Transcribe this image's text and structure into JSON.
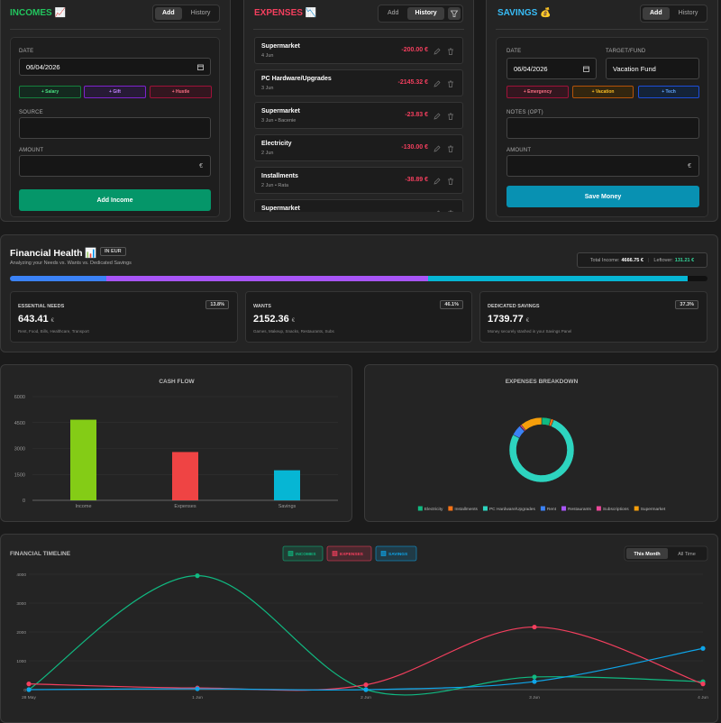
{
  "incomes": {
    "title": "INCOMES 📈",
    "tabs": [
      "Add",
      "History"
    ],
    "date_label": "DATE",
    "date": "06/04/2026",
    "quick": [
      "+ Salary",
      "+ Gift",
      "+ Hustle"
    ],
    "source_label": "SOURCE",
    "amount_label": "AMOUNT",
    "currency": "€",
    "submit": "Add Income"
  },
  "expenses": {
    "title": "EXPENSES 📉",
    "tabs": [
      "Add",
      "History"
    ],
    "items": [
      {
        "name": "Supermarket",
        "meta": "4 Jun",
        "amount": "-200.00 €"
      },
      {
        "name": "PC Hardware/Upgrades",
        "meta": "3 Jun",
        "amount": "-2145.32 €"
      },
      {
        "name": "Supermarket",
        "meta": "3 Jun • Bacenie",
        "amount": "-23.83 €"
      },
      {
        "name": "Electricity",
        "meta": "2 Jun",
        "amount": "-130.00 €"
      },
      {
        "name": "Installments",
        "meta": "2 Jun • Rata",
        "amount": "-38.89 €"
      },
      {
        "name": "Supermarket"
      }
    ]
  },
  "savings": {
    "title": "SAVINGS 💰",
    "tabs": [
      "Add",
      "History"
    ],
    "date_label": "DATE",
    "date": "06/04/2026",
    "target_label": "TARGET/FUND",
    "target": "Vacation Fund",
    "quick": [
      "+ Emergency",
      "+ Vacation",
      "+ Tech"
    ],
    "notes_label": "NOTES (OPT)",
    "amount_label": "AMOUNT",
    "currency": "€",
    "submit": "Save Money"
  },
  "health": {
    "title": "Financial Health 📊",
    "badge": "IN EUR",
    "subtitle": "Analyzing your Needs vs. Wants vs. Dedicated Savings",
    "total_label": "Total Income:",
    "total": "4666.75 €",
    "leftover_label": "Leftover:",
    "leftover": "131.21 €",
    "cards": [
      {
        "name": "ESSENTIAL NEEDS",
        "share": 13.8,
        "share_label": "13.8%",
        "amount": 643.41,
        "currency": "€",
        "note": "Rent, Food, Bills, Healthcare, Transport",
        "color": "#3b82f6"
      },
      {
        "name": "WANTS",
        "share": 46.1,
        "share_label": "46.1%",
        "amount": 2152.36,
        "currency": "€",
        "note": "Games, Makeup, Snacks, Restaurants, Subs",
        "color": "#a855f7"
      },
      {
        "name": "DEDICATED SAVINGS",
        "share": 37.3,
        "share_label": "37.3%",
        "amount": 1739.77,
        "currency": "€",
        "note": "Money securely stashed in your Savings Panel",
        "color": "#06b6d4"
      }
    ]
  },
  "chart_data": [
    {
      "type": "bar",
      "title": "CASH FLOW",
      "categories": [
        "Income",
        "Expenses",
        "Savings"
      ],
      "values": [
        4666.75,
        2795.77,
        1739.77
      ],
      "colors": [
        "#84cc16",
        "#ef4444",
        "#06b6d4"
      ],
      "ylim": [
        0,
        6000
      ],
      "yticks": [
        0,
        1500,
        3000,
        4500,
        6000
      ],
      "grid": true
    },
    {
      "type": "pie",
      "title": "EXPENSES BREAKDOWN",
      "donut": true,
      "legend": "bottom",
      "categories": [
        "Electricity",
        "Installments",
        "PC Hardware/Upgrades",
        "Rent",
        "Restaurants",
        "Subscriptions",
        "Supermarket"
      ],
      "values": [
        130,
        38.89,
        2145.32,
        150,
        7.04,
        20,
        304.52
      ],
      "colors": [
        "#10b981",
        "#f97316",
        "#2dd4bf",
        "#3b82f6",
        "#a855f7",
        "#ec4899",
        "#f59e0b"
      ]
    },
    {
      "type": "line",
      "title": "FINANCIAL TIMELINE",
      "toggles": [
        "This Month",
        "All Time"
      ],
      "x": [
        "28 May",
        "1 Jun",
        "2 Jun",
        "3 Jun",
        "4 Jun"
      ],
      "series": [
        {
          "name": "INCOMES",
          "color": "#10b981",
          "values": [
            0,
            3950,
            0,
            440,
            276.75
          ]
        },
        {
          "name": "EXPENSES",
          "color": "#f43f5e",
          "values": [
            200,
            57.73,
            168.89,
            2169.15,
            200
          ]
        },
        {
          "name": "SAVINGS",
          "color": "#0ea5e9",
          "values": [
            0,
            30,
            0,
            279.77,
            1430
          ]
        }
      ],
      "ylim": [
        0,
        4000
      ],
      "yticks": [
        0,
        1000,
        2000,
        3000,
        4000
      ],
      "grid": true
    }
  ]
}
